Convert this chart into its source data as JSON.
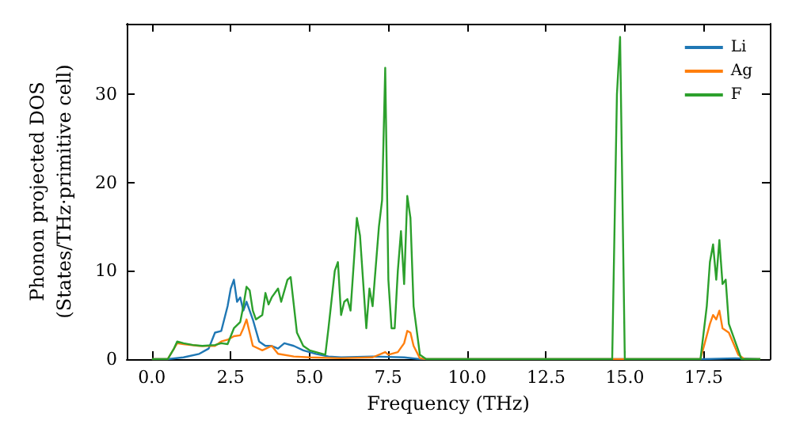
{
  "chart_data": {
    "type": "line",
    "xlabel": "Frequency (THz)",
    "ylabel": "Phonon projected DOS\n(States/THz·primitive cell)",
    "xlim": [
      -0.8,
      19.6
    ],
    "ylim": [
      0,
      38
    ],
    "xticks": [
      {
        "value": 0,
        "label": "0.0"
      },
      2.5,
      {
        "value": 5,
        "label": "5.0"
      },
      7.5,
      {
        "value": 10,
        "label": "10.0"
      },
      12.5,
      {
        "value": 15,
        "label": "15.0"
      },
      17.5
    ],
    "yticks": [
      0,
      10,
      20,
      30
    ],
    "legend": "top right",
    "grid": false,
    "series": [
      {
        "name": "Li",
        "color": "#1f77b4",
        "x": [
          0,
          0.5,
          1.0,
          1.5,
          1.8,
          2.0,
          2.2,
          2.4,
          2.5,
          2.6,
          2.7,
          2.8,
          2.9,
          3.0,
          3.2,
          3.4,
          3.6,
          3.8,
          4.0,
          4.2,
          4.5,
          4.8,
          5.2,
          5.6,
          6.0,
          7.0,
          8.0,
          8.5,
          17.5,
          18.5,
          19.3
        ],
        "values": [
          0,
          0,
          0.2,
          0.6,
          1.2,
          3.0,
          3.2,
          6.0,
          8.0,
          9.0,
          6.5,
          7.0,
          5.5,
          6.5,
          4.5,
          2.0,
          1.5,
          1.5,
          1.2,
          1.8,
          1.5,
          1.0,
          0.6,
          0.3,
          0.2,
          0.3,
          0.2,
          0,
          0,
          0.1,
          0
        ]
      },
      {
        "name": "Ag",
        "color": "#ff7f0e",
        "x": [
          0,
          0.5,
          0.7,
          0.8,
          1.0,
          1.5,
          2.0,
          2.2,
          2.4,
          2.6,
          2.8,
          2.9,
          3.0,
          3.1,
          3.2,
          3.5,
          3.8,
          4.0,
          4.5,
          5.0,
          6.0,
          7.0,
          7.4,
          7.5,
          7.8,
          8.0,
          8.1,
          8.2,
          8.3,
          8.5,
          8.7,
          17.4,
          17.7,
          17.8,
          17.9,
          18.0,
          18.1,
          18.3,
          18.6,
          18.8,
          19.3
        ],
        "values": [
          0,
          0,
          1.2,
          1.8,
          1.7,
          1.5,
          1.5,
          2.0,
          2.2,
          2.6,
          2.7,
          3.5,
          4.5,
          3.0,
          1.5,
          1.0,
          1.5,
          0.6,
          0.3,
          0.2,
          0.1,
          0.2,
          0.8,
          0.5,
          0.8,
          1.8,
          3.2,
          3.0,
          1.5,
          0.1,
          0,
          0,
          4.0,
          5.0,
          4.5,
          5.5,
          3.5,
          3.0,
          0.5,
          0,
          0
        ]
      },
      {
        "name": "F",
        "color": "#2ca02c",
        "x": [
          0,
          0.5,
          0.7,
          0.8,
          1.0,
          1.3,
          1.6,
          2.0,
          2.2,
          2.4,
          2.6,
          2.8,
          2.9,
          3.0,
          3.1,
          3.2,
          3.3,
          3.5,
          3.6,
          3.7,
          3.8,
          4.0,
          4.1,
          4.3,
          4.4,
          4.6,
          4.8,
          5.0,
          5.5,
          5.6,
          5.8,
          5.9,
          6.0,
          6.1,
          6.2,
          6.3,
          6.5,
          6.6,
          6.8,
          6.9,
          7.0,
          7.2,
          7.3,
          7.4,
          7.5,
          7.6,
          7.7,
          7.8,
          7.9,
          8.0,
          8.1,
          8.2,
          8.3,
          8.5,
          8.7,
          14.6,
          14.75,
          14.85,
          15.0,
          17.4,
          17.6,
          17.7,
          17.8,
          17.9,
          18.0,
          18.1,
          18.2,
          18.3,
          18.5,
          18.7,
          19.3
        ],
        "values": [
          0,
          0,
          1.2,
          2.0,
          1.8,
          1.6,
          1.5,
          1.6,
          1.8,
          1.7,
          3.5,
          4.2,
          6.0,
          8.2,
          7.8,
          5.5,
          4.5,
          5.0,
          7.5,
          6.2,
          7.0,
          8.0,
          6.5,
          9.0,
          9.3,
          3.0,
          1.5,
          1.0,
          0.5,
          3.5,
          10.0,
          11.0,
          5.0,
          6.5,
          6.8,
          5.5,
          16.0,
          14.0,
          3.5,
          8.0,
          6.0,
          15.0,
          18.0,
          33.0,
          9.0,
          3.5,
          3.5,
          10.0,
          14.5,
          8.5,
          18.5,
          16.0,
          6.0,
          0.5,
          0,
          0,
          30,
          36.5,
          0,
          0,
          6,
          11,
          13,
          9,
          13.5,
          8.5,
          9,
          4,
          2,
          0,
          0
        ]
      }
    ]
  }
}
